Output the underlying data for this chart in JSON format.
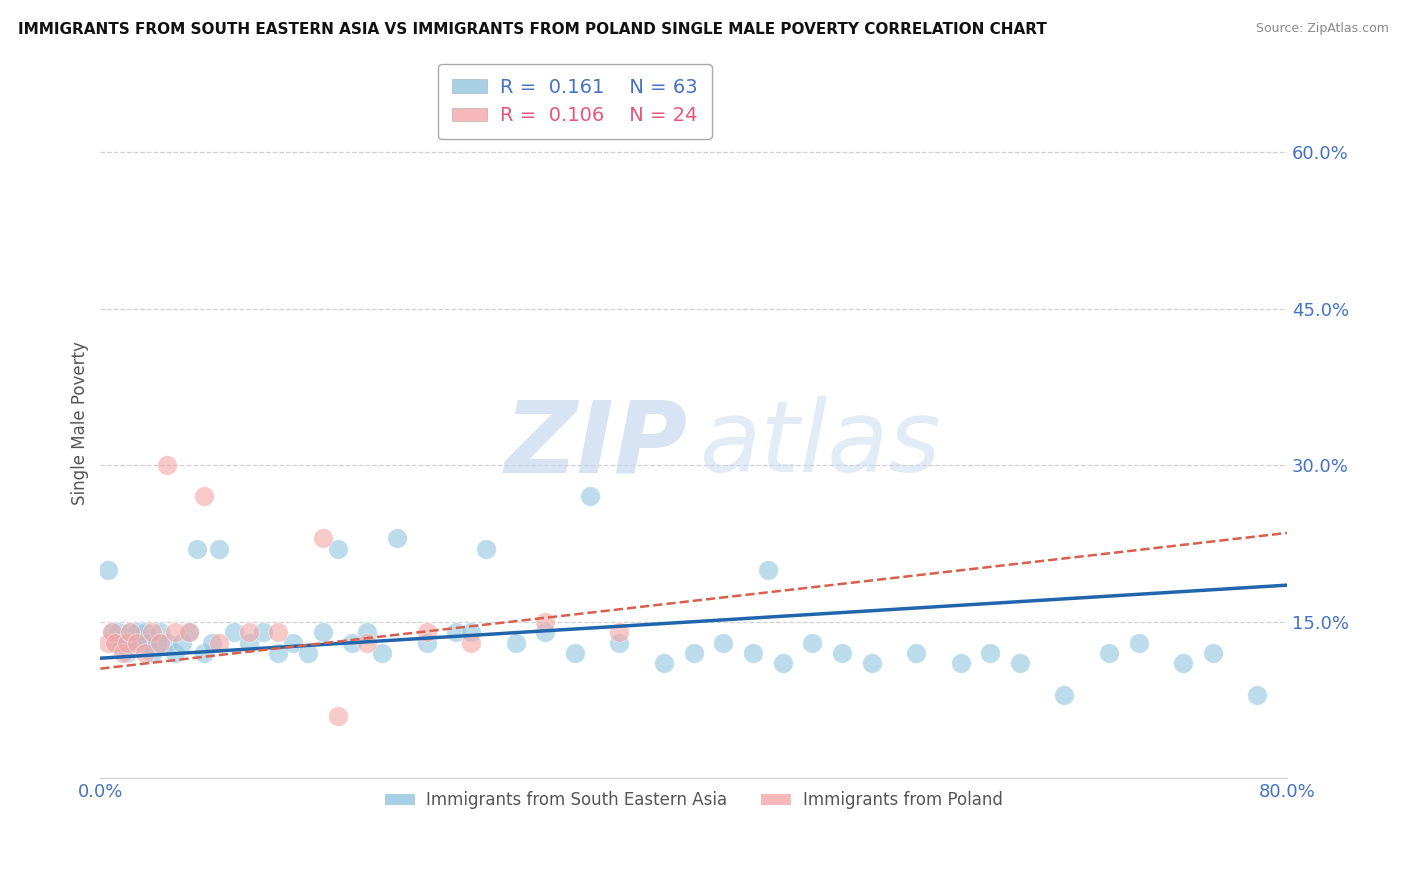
{
  "title": "IMMIGRANTS FROM SOUTH EASTERN ASIA VS IMMIGRANTS FROM POLAND SINGLE MALE POVERTY CORRELATION CHART",
  "source": "Source: ZipAtlas.com",
  "ylabel": "Single Male Poverty",
  "xlim": [
    0.0,
    0.8
  ],
  "ylim": [
    0.0,
    0.68
  ],
  "r_blue": 0.161,
  "n_blue": 63,
  "r_pink": 0.106,
  "n_pink": 24,
  "legend1": "Immigrants from South Eastern Asia",
  "legend2": "Immigrants from Poland",
  "blue_color": "#92c5de",
  "pink_color": "#f4a6a6",
  "blue_line_color": "#2166ac",
  "pink_line_color": "#d6604d",
  "blue_line_y0": 0.115,
  "blue_line_y1": 0.185,
  "pink_line_y0": 0.105,
  "pink_line_y1": 0.235,
  "blue_scatter_x": [
    0.005,
    0.008,
    0.01,
    0.012,
    0.015,
    0.018,
    0.02,
    0.022,
    0.025,
    0.028,
    0.03,
    0.032,
    0.035,
    0.038,
    0.04,
    0.045,
    0.05,
    0.055,
    0.06,
    0.065,
    0.07,
    0.075,
    0.08,
    0.09,
    0.1,
    0.11,
    0.12,
    0.13,
    0.14,
    0.15,
    0.16,
    0.17,
    0.18,
    0.19,
    0.2,
    0.22,
    0.24,
    0.26,
    0.28,
    0.3,
    0.32,
    0.35,
    0.38,
    0.4,
    0.42,
    0.44,
    0.46,
    0.48,
    0.5,
    0.52,
    0.55,
    0.58,
    0.6,
    0.62,
    0.65,
    0.68,
    0.7,
    0.73,
    0.75,
    0.78,
    0.25,
    0.33,
    0.45
  ],
  "blue_scatter_y": [
    0.2,
    0.14,
    0.13,
    0.14,
    0.13,
    0.12,
    0.14,
    0.13,
    0.14,
    0.13,
    0.14,
    0.13,
    0.12,
    0.13,
    0.14,
    0.13,
    0.12,
    0.13,
    0.14,
    0.22,
    0.12,
    0.13,
    0.22,
    0.14,
    0.13,
    0.14,
    0.12,
    0.13,
    0.12,
    0.14,
    0.22,
    0.13,
    0.14,
    0.12,
    0.23,
    0.13,
    0.14,
    0.22,
    0.13,
    0.14,
    0.12,
    0.13,
    0.11,
    0.12,
    0.13,
    0.12,
    0.11,
    0.13,
    0.12,
    0.11,
    0.12,
    0.11,
    0.12,
    0.11,
    0.08,
    0.12,
    0.13,
    0.11,
    0.12,
    0.08,
    0.14,
    0.27,
    0.2
  ],
  "pink_scatter_x": [
    0.005,
    0.008,
    0.01,
    0.015,
    0.018,
    0.02,
    0.025,
    0.03,
    0.035,
    0.04,
    0.045,
    0.05,
    0.06,
    0.07,
    0.08,
    0.1,
    0.12,
    0.15,
    0.18,
    0.22,
    0.25,
    0.3,
    0.35,
    0.16
  ],
  "pink_scatter_y": [
    0.13,
    0.14,
    0.13,
    0.12,
    0.13,
    0.14,
    0.13,
    0.12,
    0.14,
    0.13,
    0.3,
    0.14,
    0.14,
    0.27,
    0.13,
    0.14,
    0.14,
    0.23,
    0.13,
    0.14,
    0.13,
    0.15,
    0.14,
    0.06
  ],
  "ytick_positions": [
    0.15,
    0.3,
    0.45,
    0.6
  ],
  "ytick_labels": [
    "15.0%",
    "30.0%",
    "45.0%",
    "60.0%"
  ],
  "xtick_positions": [
    0.0,
    0.8
  ],
  "xtick_labels": [
    "0.0%",
    "80.0%"
  ],
  "grid_color": "#d0d0d0",
  "tick_color": "#4472c4",
  "legend_r_blue_color": "#4472c4",
  "legend_r_pink_color": "#e75480",
  "legend_n_blue_color": "#4472c4",
  "legend_n_pink_color": "#e75480",
  "bottom_legend_color": "#555555"
}
